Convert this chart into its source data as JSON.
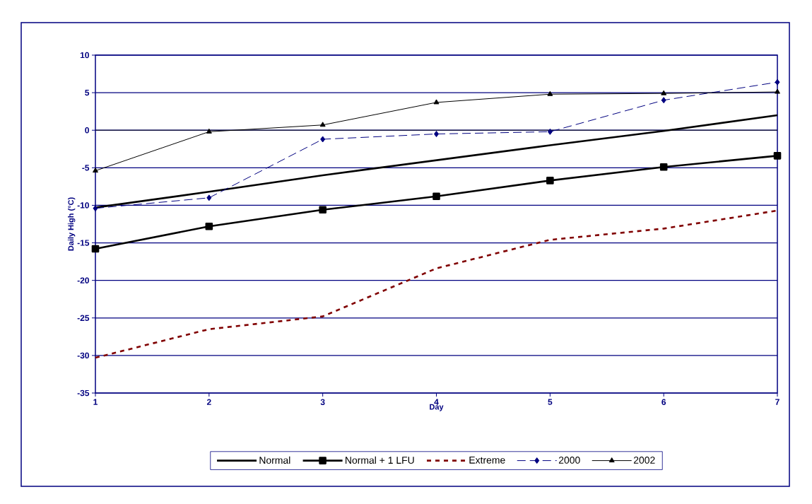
{
  "chart_data": {
    "type": "line",
    "xlabel": "Day",
    "ylabel": "Daily High (°C)",
    "x": [
      1,
      2,
      3,
      4,
      5,
      6,
      7
    ],
    "xlim": [
      1,
      7
    ],
    "xticks": [
      1,
      2,
      3,
      4,
      5,
      6,
      7
    ],
    "ylim": [
      -35,
      10
    ],
    "yticks": [
      -35,
      -30,
      -25,
      -20,
      -15,
      -10,
      -5,
      0,
      5,
      10
    ],
    "grid": "y",
    "legend": "bottom",
    "ref_lines": [
      {
        "axis": "y",
        "value": 0,
        "color": "#000000"
      }
    ],
    "series": [
      {
        "name": "Normal",
        "color": "#000000",
        "marker": "none",
        "line_style": "solid",
        "values": [
          -10.3,
          -8.2,
          -6.0,
          -4.0,
          -2.0,
          -0.1,
          2.0
        ]
      },
      {
        "name": "Normal + 1 LFU",
        "color": "#000000",
        "marker": "square",
        "line_style": "solid",
        "values": [
          -15.8,
          -12.8,
          -10.6,
          -8.8,
          -6.7,
          -4.9,
          -3.4
        ]
      },
      {
        "name": "Extreme",
        "color": "#800000",
        "marker": "none",
        "line_style": "dashed",
        "values": [
          -30.3,
          -26.5,
          -24.8,
          -18.4,
          -14.6,
          -13.1,
          -10.7
        ]
      },
      {
        "name": "2000",
        "color": "#000080",
        "marker": "diamond",
        "line_style": "dashed",
        "values": [
          -10.4,
          -9.0,
          -1.2,
          -0.5,
          -0.2,
          4.0,
          6.4
        ]
      },
      {
        "name": "2002",
        "color": "#000000",
        "marker": "triangle",
        "line_style": "solid",
        "values": [
          -5.4,
          -0.2,
          0.7,
          3.7,
          4.8,
          4.9,
          5.1
        ]
      }
    ]
  }
}
